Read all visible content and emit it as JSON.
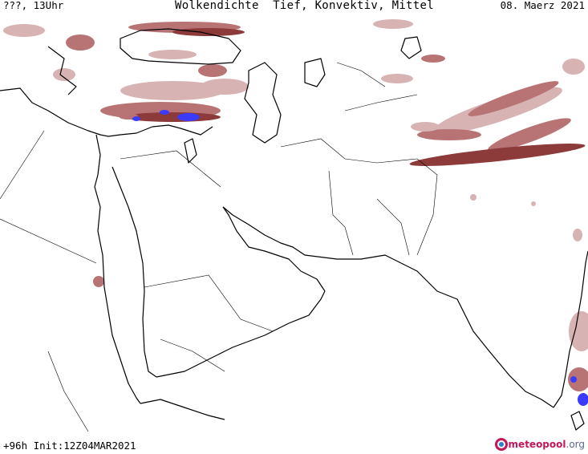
{
  "header": {
    "time_label": "???, 13Uhr",
    "title": "Wolkendichte  Tief, Konvektiv, Mittel",
    "date": "08. Maerz 2021"
  },
  "footer": {
    "forecast_info": "+96h Init:12Z04MAR2021",
    "logo_brand": "meteopool",
    "logo_tld": ".org"
  },
  "colors": {
    "cloud_light": "#d7b3b3",
    "cloud_mid": "#b87474",
    "cloud_dark": "#8c3a3a",
    "cloud_convective": "#3b3bff",
    "coastline": "#000000",
    "border": "#000000",
    "background": "#ffffff"
  },
  "icons": {
    "logo": "meteopool-globe-icon"
  }
}
